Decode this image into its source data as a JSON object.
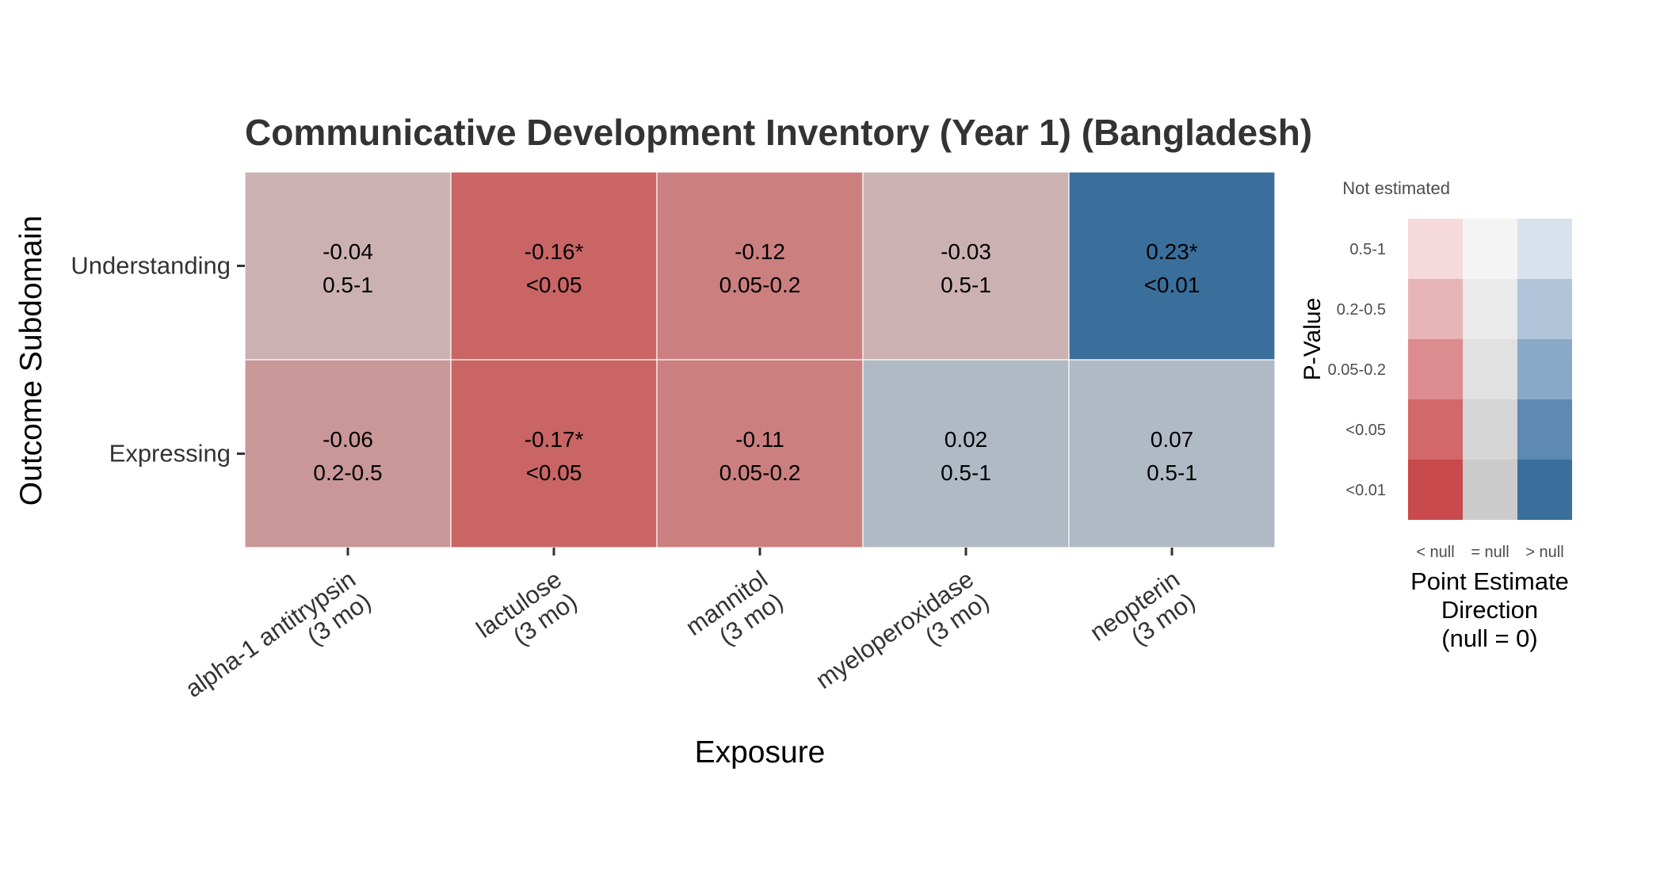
{
  "chart_data": {
    "type": "heatmap",
    "title": "Communicative Development Inventory (Year 1) (Bangladesh)",
    "xlabel": "Exposure",
    "ylabel": "Outcome Subdomain",
    "x_categories": [
      {
        "line1": "alpha-1 antitrypsin",
        "line2": "(3 mo)"
      },
      {
        "line1": "lactulose",
        "line2": "(3 mo)"
      },
      {
        "line1": "mannitol",
        "line2": "(3 mo)"
      },
      {
        "line1": "myeloperoxidase",
        "line2": "(3 mo)"
      },
      {
        "line1": "neopterin",
        "line2": "(3 mo)"
      }
    ],
    "y_categories": [
      "Understanding",
      "Expressing"
    ],
    "cells": [
      {
        "row": 0,
        "col": 0,
        "estimate": "-0.04",
        "pvalue": "0.5-1",
        "color": "#ccb1b3"
      },
      {
        "row": 0,
        "col": 1,
        "estimate": "-0.16*",
        "pvalue": "<0.05",
        "color": "#c96564"
      },
      {
        "row": 0,
        "col": 2,
        "estimate": "-0.12",
        "pvalue": "0.05-0.2",
        "color": "#cc7f7f"
      },
      {
        "row": 0,
        "col": 3,
        "estimate": "-0.03",
        "pvalue": "0.5-1",
        "color": "#ccb1b3"
      },
      {
        "row": 0,
        "col": 4,
        "estimate": "0.23*",
        "pvalue": "<0.01",
        "color": "#3a6f9c"
      },
      {
        "row": 1,
        "col": 0,
        "estimate": "-0.06",
        "pvalue": "0.2-0.5",
        "color": "#c99798"
      },
      {
        "row": 1,
        "col": 1,
        "estimate": "-0.17*",
        "pvalue": "<0.05",
        "color": "#c96564"
      },
      {
        "row": 1,
        "col": 2,
        "estimate": "-0.11",
        "pvalue": "0.05-0.2",
        "color": "#cc7f7f"
      },
      {
        "row": 1,
        "col": 3,
        "estimate": "0.02",
        "pvalue": "0.5-1",
        "color": "#b0bac4"
      },
      {
        "row": 1,
        "col": 4,
        "estimate": "0.07",
        "pvalue": "0.5-1",
        "color": "#b0bac4"
      }
    ],
    "legend": {
      "not_estimated_label": "Not estimated",
      "y_title": "P-Value",
      "rows": [
        "0.5-1",
        "0.2-0.5",
        "0.05-0.2",
        "<0.05",
        "<0.01"
      ],
      "columns": [
        "< null",
        "= null",
        "> null"
      ],
      "x_title_lines": [
        "Point Estimate",
        "Direction",
        "(null = 0)"
      ],
      "colors": [
        [
          "#f5d9dc",
          "#f4f4f4",
          "#d8e2ec"
        ],
        [
          "#e8b5b7",
          "#eaeaea",
          "#b1c5da"
        ],
        [
          "#dd8c8f",
          "#e1e1e1",
          "#89a9c6"
        ],
        [
          "#d26869",
          "#d6d6d6",
          "#5e89b2"
        ],
        [
          "#c84a4c",
          "#cbcbcb",
          "#3a6f9c"
        ]
      ]
    }
  }
}
